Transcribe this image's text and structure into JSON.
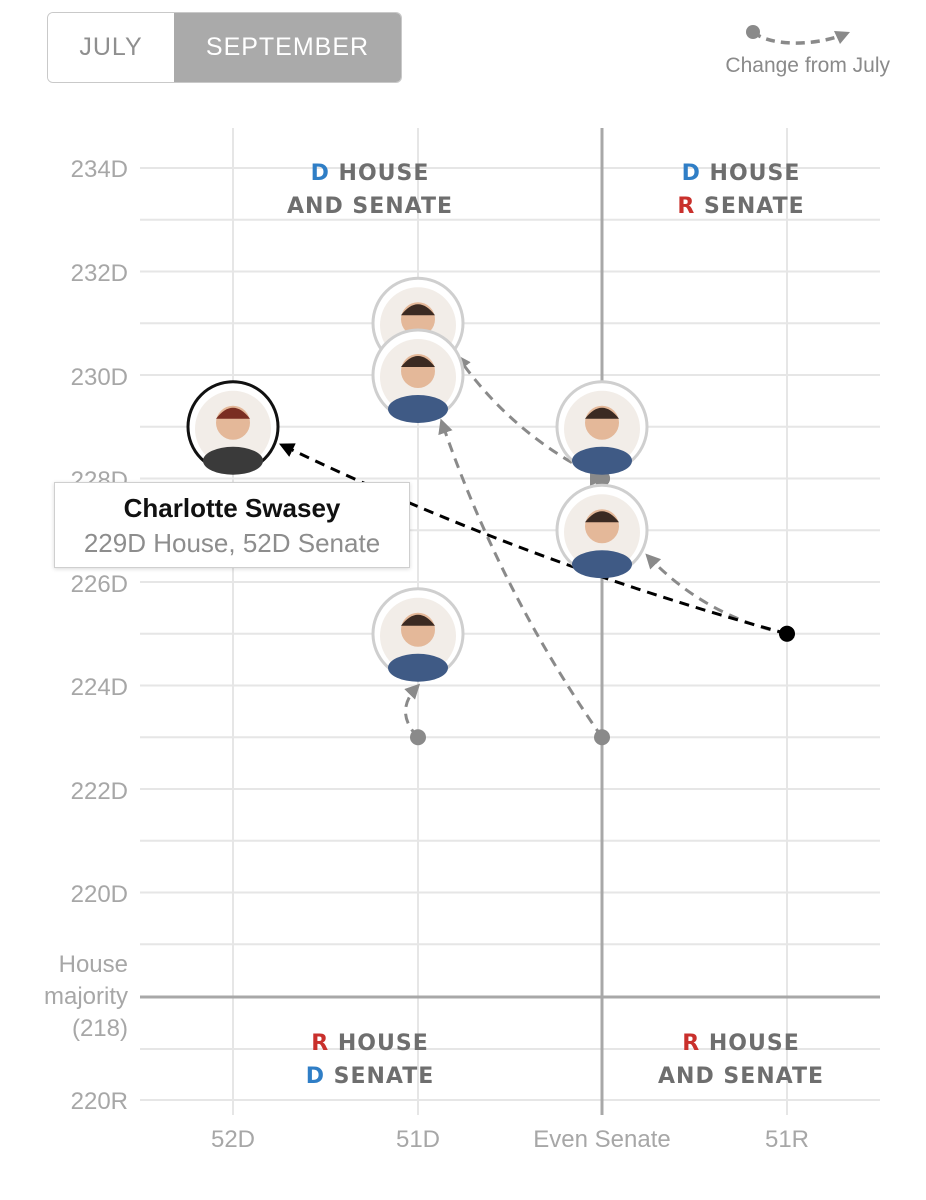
{
  "toggle": {
    "options": [
      "JULY",
      "SEPTEMBER"
    ],
    "selected": "SEPTEMBER"
  },
  "legend": {
    "label": "Change from July"
  },
  "colors": {
    "dem": "#2f7ec6",
    "rep": "#c9302c",
    "arrow_gray": "#8a8a8a",
    "arrow_selected": "#000000"
  },
  "tooltip": {
    "name": "Charlotte Swasey",
    "detail": "229D House, 52D Senate"
  },
  "chart_data": {
    "type": "scatter",
    "x_axis": {
      "categories": [
        "52D",
        "51D",
        "Even Senate",
        "51R"
      ]
    },
    "y_axis": {
      "ticks": [
        "234D",
        "232D",
        "230D",
        "228D",
        "226D",
        "224D",
        "222D",
        "220D",
        "House majority (218)",
        "220R"
      ],
      "range_d_seats": [
        220,
        234
      ]
    },
    "quadrants": {
      "top_left": {
        "line1_party": "D",
        "line1_text": "HOUSE",
        "line2_party": "",
        "line2_text": "AND SENATE"
      },
      "top_right": {
        "line1_party": "D",
        "line1_text": "HOUSE",
        "line2_party": "R",
        "line2_text": "SENATE"
      },
      "bottom_left": {
        "line1_party": "R",
        "line1_text": "HOUSE",
        "line2_party": "D",
        "line2_text": "SENATE"
      },
      "bottom_right": {
        "line1_party": "R",
        "line1_text": "HOUSE",
        "line2_party": "",
        "line2_text": "AND SENATE"
      }
    },
    "forecasters": [
      {
        "id": "p1",
        "from": {
          "x": "Even Senate",
          "y": 228
        },
        "to": {
          "x": "51D",
          "y": 231
        },
        "selected": false
      },
      {
        "id": "p2",
        "from": {
          "x": "Even Senate",
          "y": 223
        },
        "to": {
          "x": "51D",
          "y": 230
        },
        "selected": false
      },
      {
        "id": "p3",
        "from": {
          "x": "Even Senate",
          "y": 228
        },
        "to": {
          "x": "Even Senate",
          "y": 229
        },
        "selected": false
      },
      {
        "id": "p4",
        "from": {
          "x": "51R",
          "y": 225
        },
        "to": {
          "x": "Even Senate",
          "y": 227
        },
        "selected": false
      },
      {
        "id": "p5",
        "from": {
          "x": "51D",
          "y": 223
        },
        "to": {
          "x": "51D",
          "y": 225
        },
        "selected": false
      },
      {
        "id": "charlotte-swasey",
        "from": {
          "x": "51R",
          "y": 225
        },
        "to": {
          "x": "52D",
          "y": 229
        },
        "selected": true
      }
    ]
  }
}
